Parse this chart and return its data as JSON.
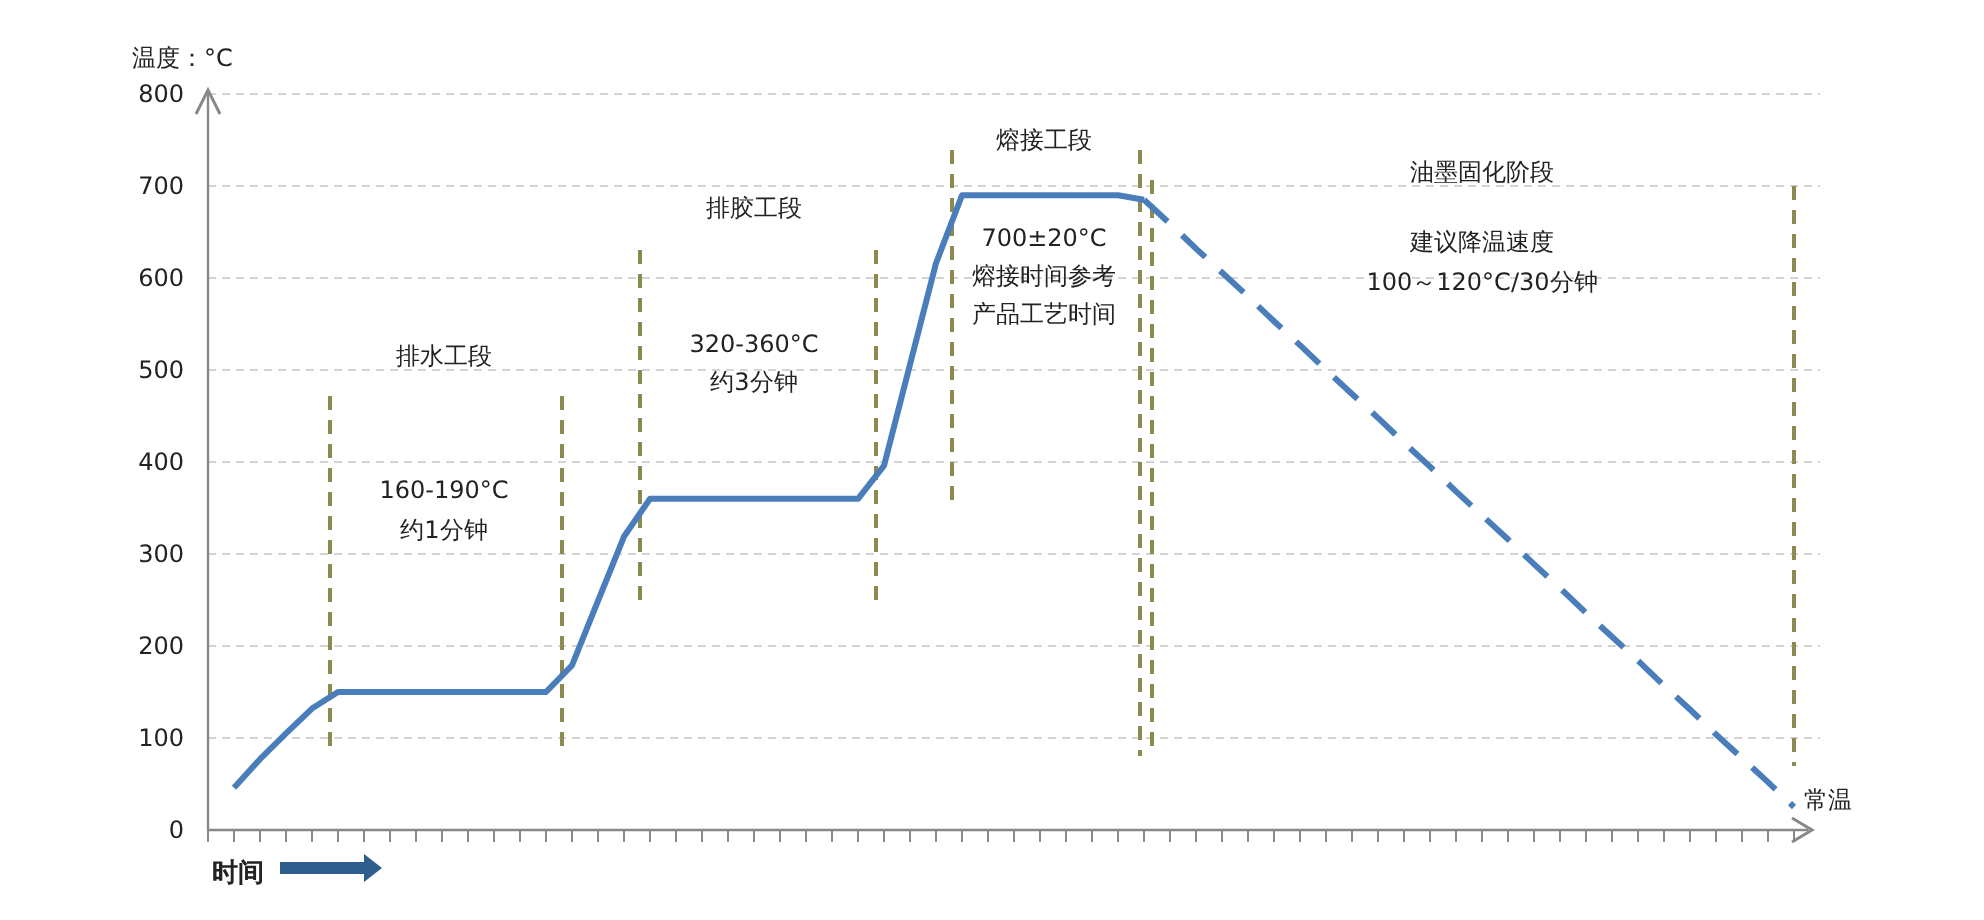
{
  "chart_data": {
    "type": "line",
    "ylabel": "温度：°C",
    "xlabel": "时间",
    "categories": [
      null,
      null,
      null,
      null,
      null,
      null,
      null,
      null,
      null,
      null,
      null,
      null,
      null,
      null,
      null,
      null,
      null,
      null,
      null,
      null,
      null,
      null,
      null,
      null,
      null,
      null,
      null,
      null,
      null,
      null,
      null,
      null,
      null,
      null,
      null,
      null,
      null,
      null,
      null,
      null,
      null,
      null,
      null,
      null,
      null,
      null,
      null,
      null,
      null,
      null,
      null,
      null,
      null,
      null,
      null,
      null,
      null,
      null,
      null,
      null,
      null,
      null
    ],
    "ylim": [
      0,
      800
    ],
    "yticks": [
      0,
      100,
      200,
      300,
      400,
      500,
      600,
      700,
      800
    ],
    "tick_labels": "y",
    "grid": "y",
    "marker": "none",
    "series": [
      {
        "color": "#4a7ebb",
        "line_style": "solid",
        "values": [
          null,
          46,
          77,
          105,
          132,
          150,
          150,
          150,
          150,
          150,
          150,
          150,
          150,
          150,
          179,
          249,
          319,
          360,
          360,
          360,
          360,
          360,
          360,
          360,
          360,
          360,
          396,
          506,
          616,
          690,
          690,
          690,
          690,
          690,
          690,
          690,
          685,
          null,
          null,
          null,
          null,
          null,
          null,
          null,
          null,
          null,
          null,
          null,
          null,
          null,
          null,
          null,
          null,
          null,
          null,
          null,
          null,
          null,
          null,
          null,
          null,
          null
        ]
      },
      {
        "color": "#4a7ebb",
        "line_style": "dashed",
        "values": [
          null,
          null,
          null,
          null,
          null,
          null,
          null,
          null,
          null,
          null,
          null,
          null,
          null,
          null,
          null,
          null,
          null,
          null,
          null,
          null,
          null,
          null,
          null,
          null,
          null,
          null,
          null,
          null,
          null,
          null,
          null,
          null,
          null,
          null,
          null,
          null,
          685,
          659,
          632,
          606,
          580,
          553,
          527,
          500,
          474,
          448,
          421,
          395,
          368,
          342,
          316,
          289,
          263,
          236,
          210,
          184,
          157,
          131,
          104,
          78,
          52,
          25
        ]
      }
    ],
    "annotations": [
      "排水工段",
      "160-190°C",
      "约1分钟",
      "排胶工段",
      "320-360°C",
      "约3分钟",
      "熔接工段",
      "700±20°C",
      "熔接时间参考",
      "产品工艺时间",
      "油墨固化阶段",
      "建议降温速度",
      "100～120°C/30分钟",
      "常温"
    ]
  }
}
